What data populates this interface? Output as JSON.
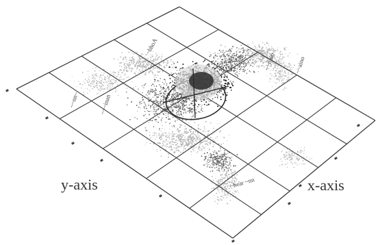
{
  "figure": {
    "y_axis_caption": "y-axis",
    "x_axis_caption": "x-axis"
  },
  "colors": {
    "background": "#ffffff",
    "grid_line": "#3a3a3a",
    "grid_faint": "#9a9a9a",
    "speckle_dark": "#2a2a2a",
    "speckle_mid": "#6e6e6e",
    "speckle_light": "#b4b4b4",
    "annotation_text": "#444444"
  },
  "annotations": [
    {
      "id": "annotation-top-left",
      "text": "~bhoA"
    },
    {
      "id": "annotation-top-right-a",
      "text": "~~nnio"
    },
    {
      "id": "annotation-top-right-b",
      "text": "~~aino"
    },
    {
      "id": "annotation-left-a",
      "text": "~~nn~"
    },
    {
      "id": "annotation-left-b",
      "text": "~~~inan"
    },
    {
      "id": "annotation-bottom-center",
      "text": "~hear ~nn"
    }
  ]
}
